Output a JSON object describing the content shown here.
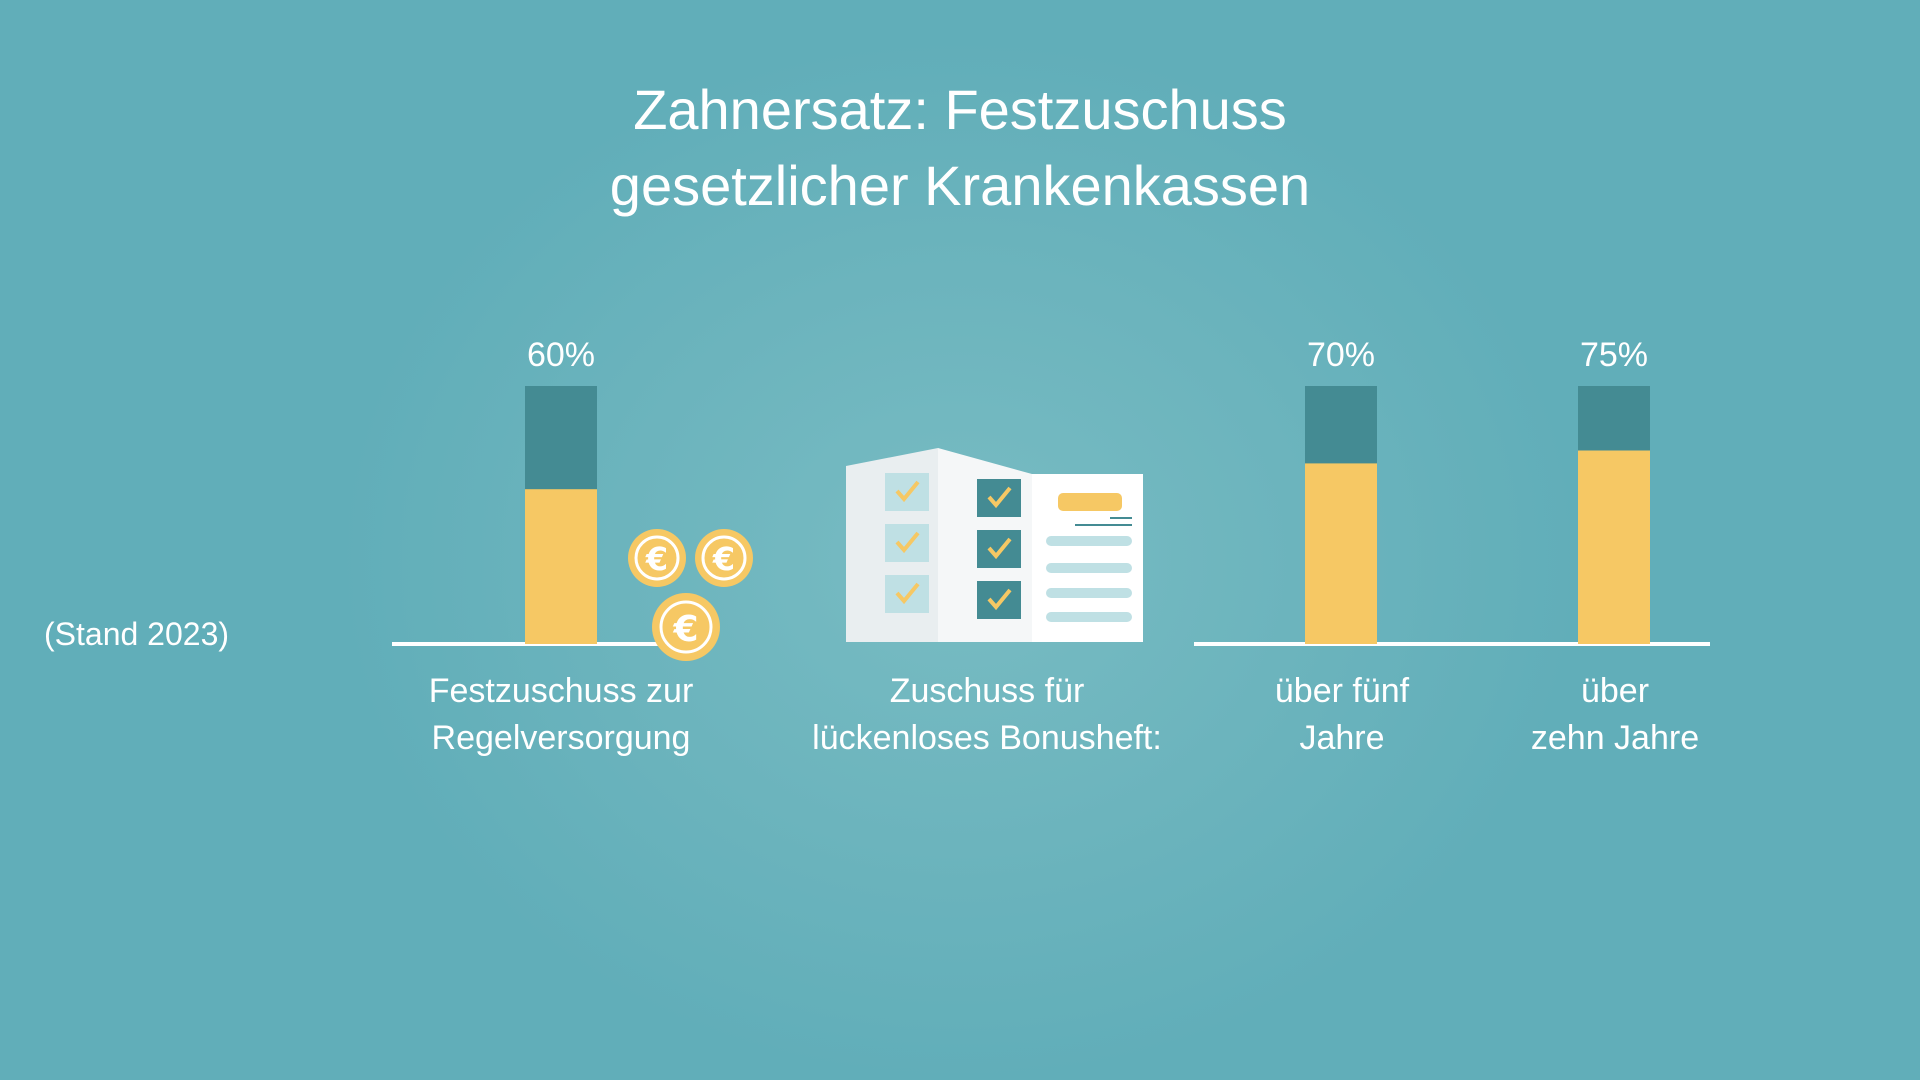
{
  "title_line1": "Zahnersatz: Festzuschuss",
  "title_line2": "gesetzlicher Krankenkassen",
  "stand": "(Stand 2023)",
  "bonus_heading_line1": "Zuschuss für",
  "bonus_heading_line2": "lückenloses Bonusheft:",
  "colors": {
    "fill": "#f6c864",
    "remainder": "#448b93",
    "axis": "#ffffff",
    "text": "#ffffff"
  },
  "icons": [
    "euro-coin-icon",
    "bonus-booklet-icon"
  ],
  "chart_data": {
    "type": "bar",
    "categories": [
      "Festzuschuss zur Regelversorgung",
      "über fünf Jahre",
      "über zehn Jahre"
    ],
    "category_lines": [
      [
        "Festzuschuss zur",
        "Regelversorgung"
      ],
      [
        "über fünf",
        "Jahre"
      ],
      [
        "über",
        "zehn Jahre"
      ]
    ],
    "values": [
      60,
      70,
      75
    ],
    "value_labels": [
      "60%",
      "70%",
      "75%"
    ],
    "ylim": [
      0,
      100
    ],
    "unit": "%",
    "grid": false,
    "title": "Zahnersatz: Festzuschuss gesetzlicher Krankenkassen"
  }
}
